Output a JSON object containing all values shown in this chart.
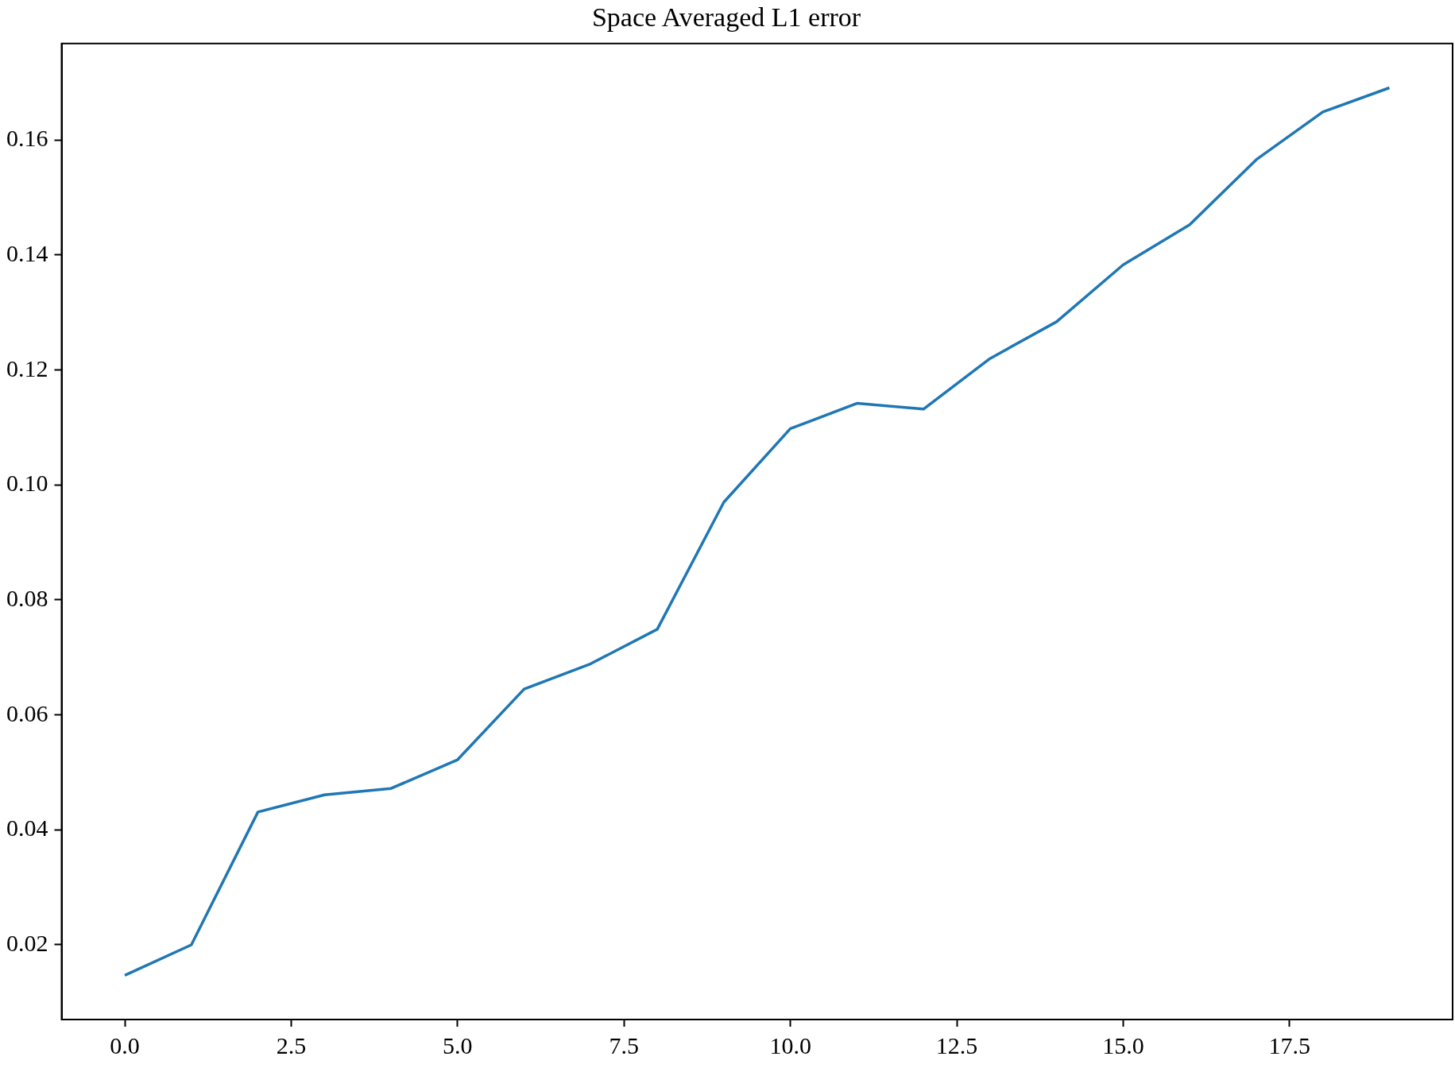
{
  "chart_data": {
    "type": "line",
    "title": "Space Averaged L1 error",
    "x": [
      0,
      1,
      2,
      3,
      4,
      5,
      6,
      7,
      8,
      9,
      10,
      11,
      12,
      13,
      14,
      15,
      16,
      17,
      18,
      19
    ],
    "series": [
      {
        "color": "#1f77b4",
        "values": [
          0.0147,
          0.02,
          0.0431,
          0.0461,
          0.0472,
          0.0522,
          0.0645,
          0.0689,
          0.0749,
          0.097,
          0.1098,
          0.1142,
          0.1132,
          0.122,
          0.1284,
          0.1383,
          0.1453,
          0.1566,
          0.1649,
          0.1691
        ]
      }
    ],
    "xlim": [
      -0.95,
      19.95
    ],
    "xticks": [
      {
        "value": 0,
        "label": "0.0"
      },
      {
        "value": 2.5,
        "label": "2.5"
      },
      {
        "value": 5,
        "label": "5.0"
      },
      {
        "value": 7.5,
        "label": "7.5"
      },
      {
        "value": 10,
        "label": "10.0"
      },
      {
        "value": 12.5,
        "label": "12.5"
      },
      {
        "value": 15,
        "label": "15.0"
      },
      {
        "value": 17.5,
        "label": "17.5"
      }
    ],
    "ylim": [
      0.007,
      0.1768
    ],
    "yticks": [
      {
        "value": 0.02,
        "label": "0.02"
      },
      {
        "value": 0.04,
        "label": "0.04"
      },
      {
        "value": 0.06,
        "label": "0.06"
      },
      {
        "value": 0.08,
        "label": "0.08"
      },
      {
        "value": 0.1,
        "label": "0.10"
      },
      {
        "value": 0.12,
        "label": "0.12"
      },
      {
        "value": 0.14,
        "label": "0.14"
      },
      {
        "value": 0.16,
        "label": "0.16"
      }
    ],
    "grid": false,
    "legend": false,
    "marker": "none",
    "line_style": "solid"
  }
}
